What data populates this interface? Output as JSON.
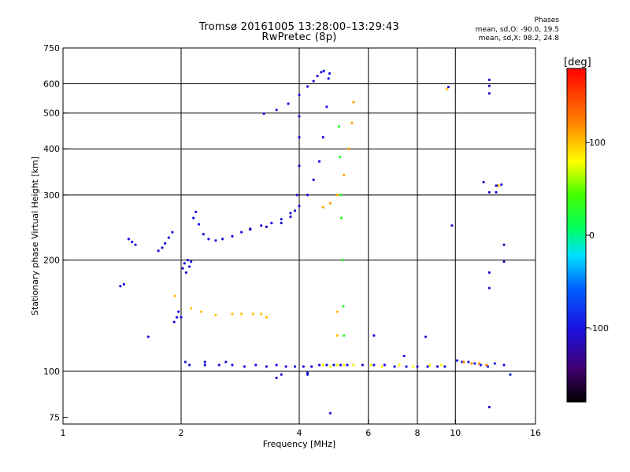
{
  "title": {
    "line1": "Tromsø 20161005 13:28:00–13:29:43",
    "line2": "RwPretec (8p)"
  },
  "stats": {
    "title": "Phases",
    "o_mode": "mean, sd,O: -90.0, 19.5",
    "x_mode": "mean, sd,X:  98.2, 24.8"
  },
  "colorbar": {
    "unit": "[deg]",
    "range": [
      -180,
      180
    ],
    "ticks": [
      {
        "value": 100,
        "label": "100"
      },
      {
        "value": 0,
        "label": "0"
      },
      {
        "value": -100,
        "label": "-100"
      }
    ]
  },
  "chart_data": {
    "type": "scatter",
    "xlabel": "Frequency [MHz]",
    "ylabel": "Stationary phase Virtual Height [km]",
    "x_scale": "log",
    "y_scale": "log",
    "xlim": [
      1,
      16
    ],
    "ylim": [
      72,
      750
    ],
    "x_ticks": [
      {
        "value": 1,
        "label": "1"
      },
      {
        "value": 2,
        "label": "2"
      },
      {
        "value": 4,
        "label": "4"
      },
      {
        "value": 6,
        "label": "6"
      },
      {
        "value": 8,
        "label": "8"
      },
      {
        "value": 10,
        "label": "10"
      },
      {
        "value": 16,
        "label": "16"
      }
    ],
    "y_ticks": [
      {
        "value": 75,
        "label": "75"
      },
      {
        "value": 100,
        "label": "100"
      },
      {
        "value": 200,
        "label": "200"
      },
      {
        "value": 300,
        "label": "300"
      },
      {
        "value": 400,
        "label": "400"
      },
      {
        "value": 500,
        "label": "500"
      },
      {
        "value": 600,
        "label": "600"
      },
      {
        "value": 750,
        "label": "750"
      }
    ],
    "grid_x": [
      2,
      4,
      6,
      8,
      10
    ],
    "grid_y": [
      100,
      200,
      300,
      400,
      500,
      600
    ],
    "grid": true,
    "legend": "none",
    "series": [
      {
        "points": [
          [
            1.4,
            170
          ],
          [
            1.43,
            172
          ],
          [
            1.47,
            228
          ],
          [
            1.5,
            224
          ],
          [
            1.53,
            220
          ],
          [
            1.75,
            212
          ],
          [
            1.79,
            216
          ],
          [
            1.82,
            222
          ],
          [
            1.86,
            230
          ],
          [
            1.9,
            238
          ]
        ],
        "phase": -100
      },
      {
        "points": [
          [
            1.92,
            136
          ],
          [
            1.95,
            140
          ],
          [
            1.97,
            145
          ],
          [
            2.0,
            140
          ],
          [
            2.02,
            190
          ],
          [
            2.04,
            196
          ],
          [
            2.06,
            185
          ],
          [
            2.08,
            200
          ],
          [
            2.1,
            192
          ],
          [
            2.12,
            198
          ],
          [
            2.15,
            260
          ],
          [
            2.18,
            270
          ],
          [
            2.22,
            250
          ],
          [
            2.28,
            235
          ],
          [
            2.35,
            228
          ],
          [
            2.45,
            226
          ],
          [
            2.55,
            228
          ],
          [
            2.7,
            232
          ],
          [
            2.85,
            238
          ],
          [
            3.0,
            243
          ],
          [
            3.2,
            248
          ],
          [
            3.4,
            252
          ],
          [
            3.6,
            258
          ],
          [
            3.8,
            268
          ],
          [
            4.0,
            280
          ],
          [
            4.2,
            300
          ],
          [
            4.35,
            330
          ],
          [
            4.5,
            370
          ],
          [
            4.6,
            430
          ],
          [
            4.7,
            520
          ],
          [
            4.75,
            620
          ],
          [
            4.78,
            640
          ]
        ],
        "phase": -100
      },
      {
        "points": [
          [
            3.0,
            242
          ],
          [
            3.3,
            246
          ],
          [
            3.6,
            252
          ],
          [
            3.8,
            262
          ],
          [
            3.9,
            272
          ],
          [
            3.95,
            300
          ],
          [
            4.0,
            360
          ],
          [
            4.0,
            430
          ],
          [
            4.0,
            490
          ]
        ],
        "phase": -110
      },
      {
        "points": [
          [
            3.25,
            498
          ],
          [
            3.5,
            510
          ],
          [
            3.75,
            530
          ],
          [
            4.0,
            560
          ],
          [
            4.2,
            590
          ],
          [
            4.35,
            610
          ],
          [
            4.45,
            630
          ],
          [
            4.55,
            645
          ],
          [
            4.62,
            650
          ]
        ],
        "phase": -100
      },
      {
        "points": [
          [
            4.6,
            278
          ],
          [
            4.8,
            285
          ],
          [
            5.0,
            300
          ],
          [
            5.2,
            340
          ],
          [
            5.35,
            400
          ],
          [
            5.45,
            470
          ],
          [
            5.5,
            535
          ]
        ],
        "phase": 110
      },
      {
        "points": [
          [
            5.05,
            460
          ],
          [
            5.08,
            380
          ],
          [
            5.1,
            300
          ],
          [
            5.12,
            260
          ],
          [
            5.15,
            200
          ],
          [
            5.18,
            150
          ],
          [
            5.2,
            125
          ]
        ],
        "phase": 30
      },
      {
        "points": [
          [
            2.1,
            104
          ],
          [
            2.3,
            104
          ],
          [
            2.5,
            104
          ],
          [
            2.7,
            104
          ],
          [
            2.9,
            103
          ],
          [
            3.1,
            104
          ],
          [
            3.3,
            103
          ],
          [
            3.5,
            104
          ],
          [
            3.7,
            103
          ],
          [
            3.9,
            103
          ],
          [
            4.1,
            103
          ],
          [
            4.3,
            103
          ],
          [
            4.5,
            104
          ],
          [
            4.7,
            104
          ],
          [
            4.9,
            104
          ],
          [
            5.1,
            104
          ],
          [
            5.3,
            104
          ],
          [
            5.5,
            104
          ],
          [
            5.8,
            104
          ],
          [
            6.2,
            104
          ],
          [
            6.6,
            104
          ],
          [
            7.0,
            103
          ],
          [
            7.5,
            103
          ],
          [
            8.0,
            103
          ],
          [
            8.5,
            103
          ],
          [
            9.0,
            103
          ],
          [
            9.4,
            103
          ]
        ],
        "phase": -100
      },
      {
        "points": [
          [
            4.6,
            104
          ],
          [
            4.8,
            103
          ],
          [
            5.0,
            104
          ],
          [
            5.2,
            104
          ],
          [
            5.5,
            104
          ],
          [
            6.1,
            104
          ],
          [
            6.5,
            103
          ],
          [
            7.2,
            104
          ],
          [
            7.8,
            103
          ],
          [
            8.6,
            104
          ],
          [
            9.2,
            104
          ]
        ],
        "phase": 80
      },
      {
        "points": [
          [
            10.1,
            107
          ],
          [
            10.4,
            106
          ],
          [
            10.8,
            106
          ],
          [
            11.2,
            105
          ],
          [
            11.6,
            104
          ],
          [
            12.1,
            103
          ],
          [
            12.6,
            105
          ],
          [
            13.3,
            104
          ],
          [
            13.8,
            98
          ]
        ],
        "phase": -95
      },
      {
        "points": [
          [
            10.5,
            106
          ],
          [
            11.0,
            105
          ],
          [
            11.5,
            105
          ],
          [
            12.0,
            104
          ]
        ],
        "phase": 120
      },
      {
        "points": [
          [
            9.6,
            588
          ],
          [
            12.2,
            615
          ],
          [
            12.2,
            592
          ],
          [
            12.2,
            565
          ],
          [
            11.8,
            325
          ],
          [
            12.2,
            305
          ],
          [
            12.7,
            318
          ],
          [
            12.7,
            305
          ],
          [
            13.1,
            320
          ],
          [
            13.3,
            220
          ],
          [
            13.3,
            198
          ],
          [
            12.2,
            185
          ],
          [
            12.2,
            168
          ],
          [
            12.2,
            80
          ],
          [
            9.8,
            248
          ],
          [
            12.8,
            318
          ]
        ],
        "phase": -110
      },
      {
        "points": [
          [
            1.65,
            124
          ],
          [
            2.05,
            106
          ],
          [
            2.3,
            106
          ],
          [
            2.6,
            106
          ],
          [
            3.5,
            96
          ],
          [
            3.6,
            98
          ],
          [
            4.2,
            99
          ],
          [
            4.2,
            98
          ],
          [
            4.8,
            77
          ],
          [
            6.2,
            125
          ],
          [
            7.4,
            110
          ],
          [
            8.4,
            124
          ]
        ],
        "phase": -100
      },
      {
        "points": [
          [
            1.93,
            160
          ],
          [
            2.12,
            148
          ],
          [
            2.25,
            145
          ],
          [
            2.45,
            142
          ],
          [
            2.7,
            143
          ],
          [
            2.85,
            143
          ],
          [
            3.05,
            143
          ],
          [
            3.2,
            143
          ],
          [
            3.3,
            140
          ],
          [
            9.5,
            580
          ],
          [
            12.9,
            318
          ],
          [
            5.0,
            145
          ],
          [
            5.0,
            125
          ]
        ],
        "phase": 100
      }
    ]
  }
}
